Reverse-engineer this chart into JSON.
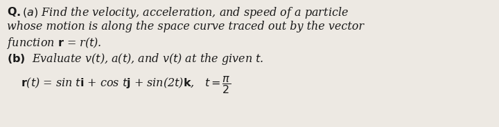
{
  "background_color": "#ede9e3",
  "text_color": "#1a1a1a",
  "fontsize": 11.5,
  "line1": "Q.(a) Find the velocity, acceleration, and speed of a particle",
  "line2": "whose motion is along the space curve traced out by the vector",
  "line3_a": "function ",
  "line3_b": "r",
  "line3_c": " = r(",
  "line3_d": "t",
  "line3_e": ").",
  "line4_a": "(b)",
  "line4_b": "  Evaluate v(t), a(t), and v(t) at the given t.",
  "line5": "r(t) = sin ti + cos tj + sin(2t)k,",
  "fig_width": 7.2,
  "fig_height": 1.84,
  "dpi": 100
}
